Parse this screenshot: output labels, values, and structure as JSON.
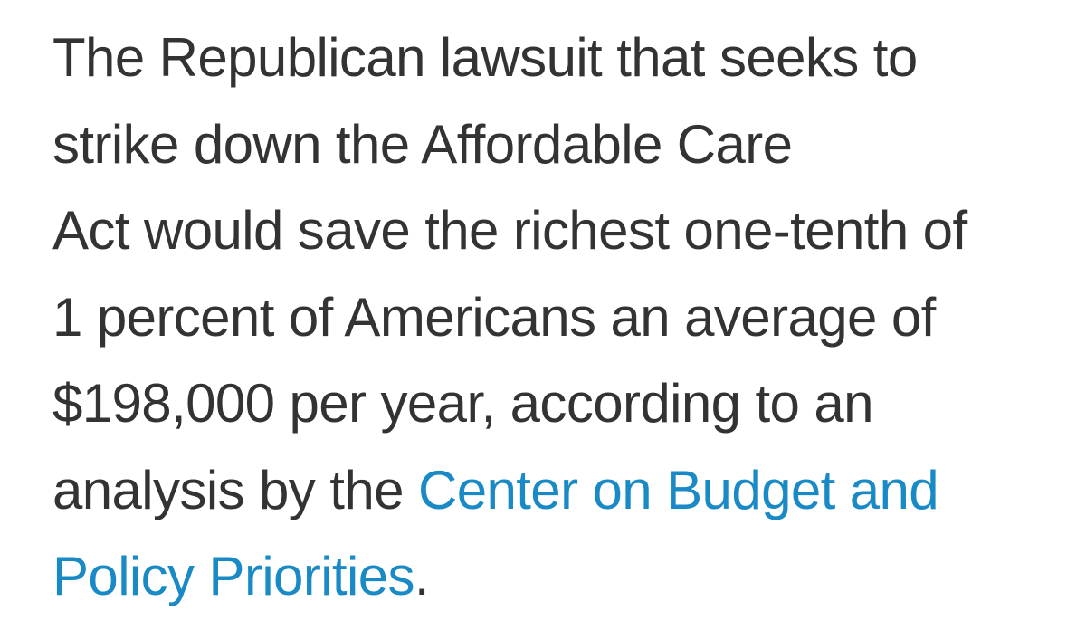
{
  "article": {
    "lines": [
      "The Republican lawsuit that seeks to",
      "strike down the Affordable Care",
      "Act would save the richest one-tenth of",
      "1 percent of Americans an average of",
      "$198,000 per year, according to an"
    ],
    "line6_prefix": "analysis by the ",
    "link_part1": "Center on Budget and",
    "link_part2": "Policy Priorities",
    "final_period": ".",
    "link_color": "#1a8ac6",
    "text_color": "#333333"
  }
}
